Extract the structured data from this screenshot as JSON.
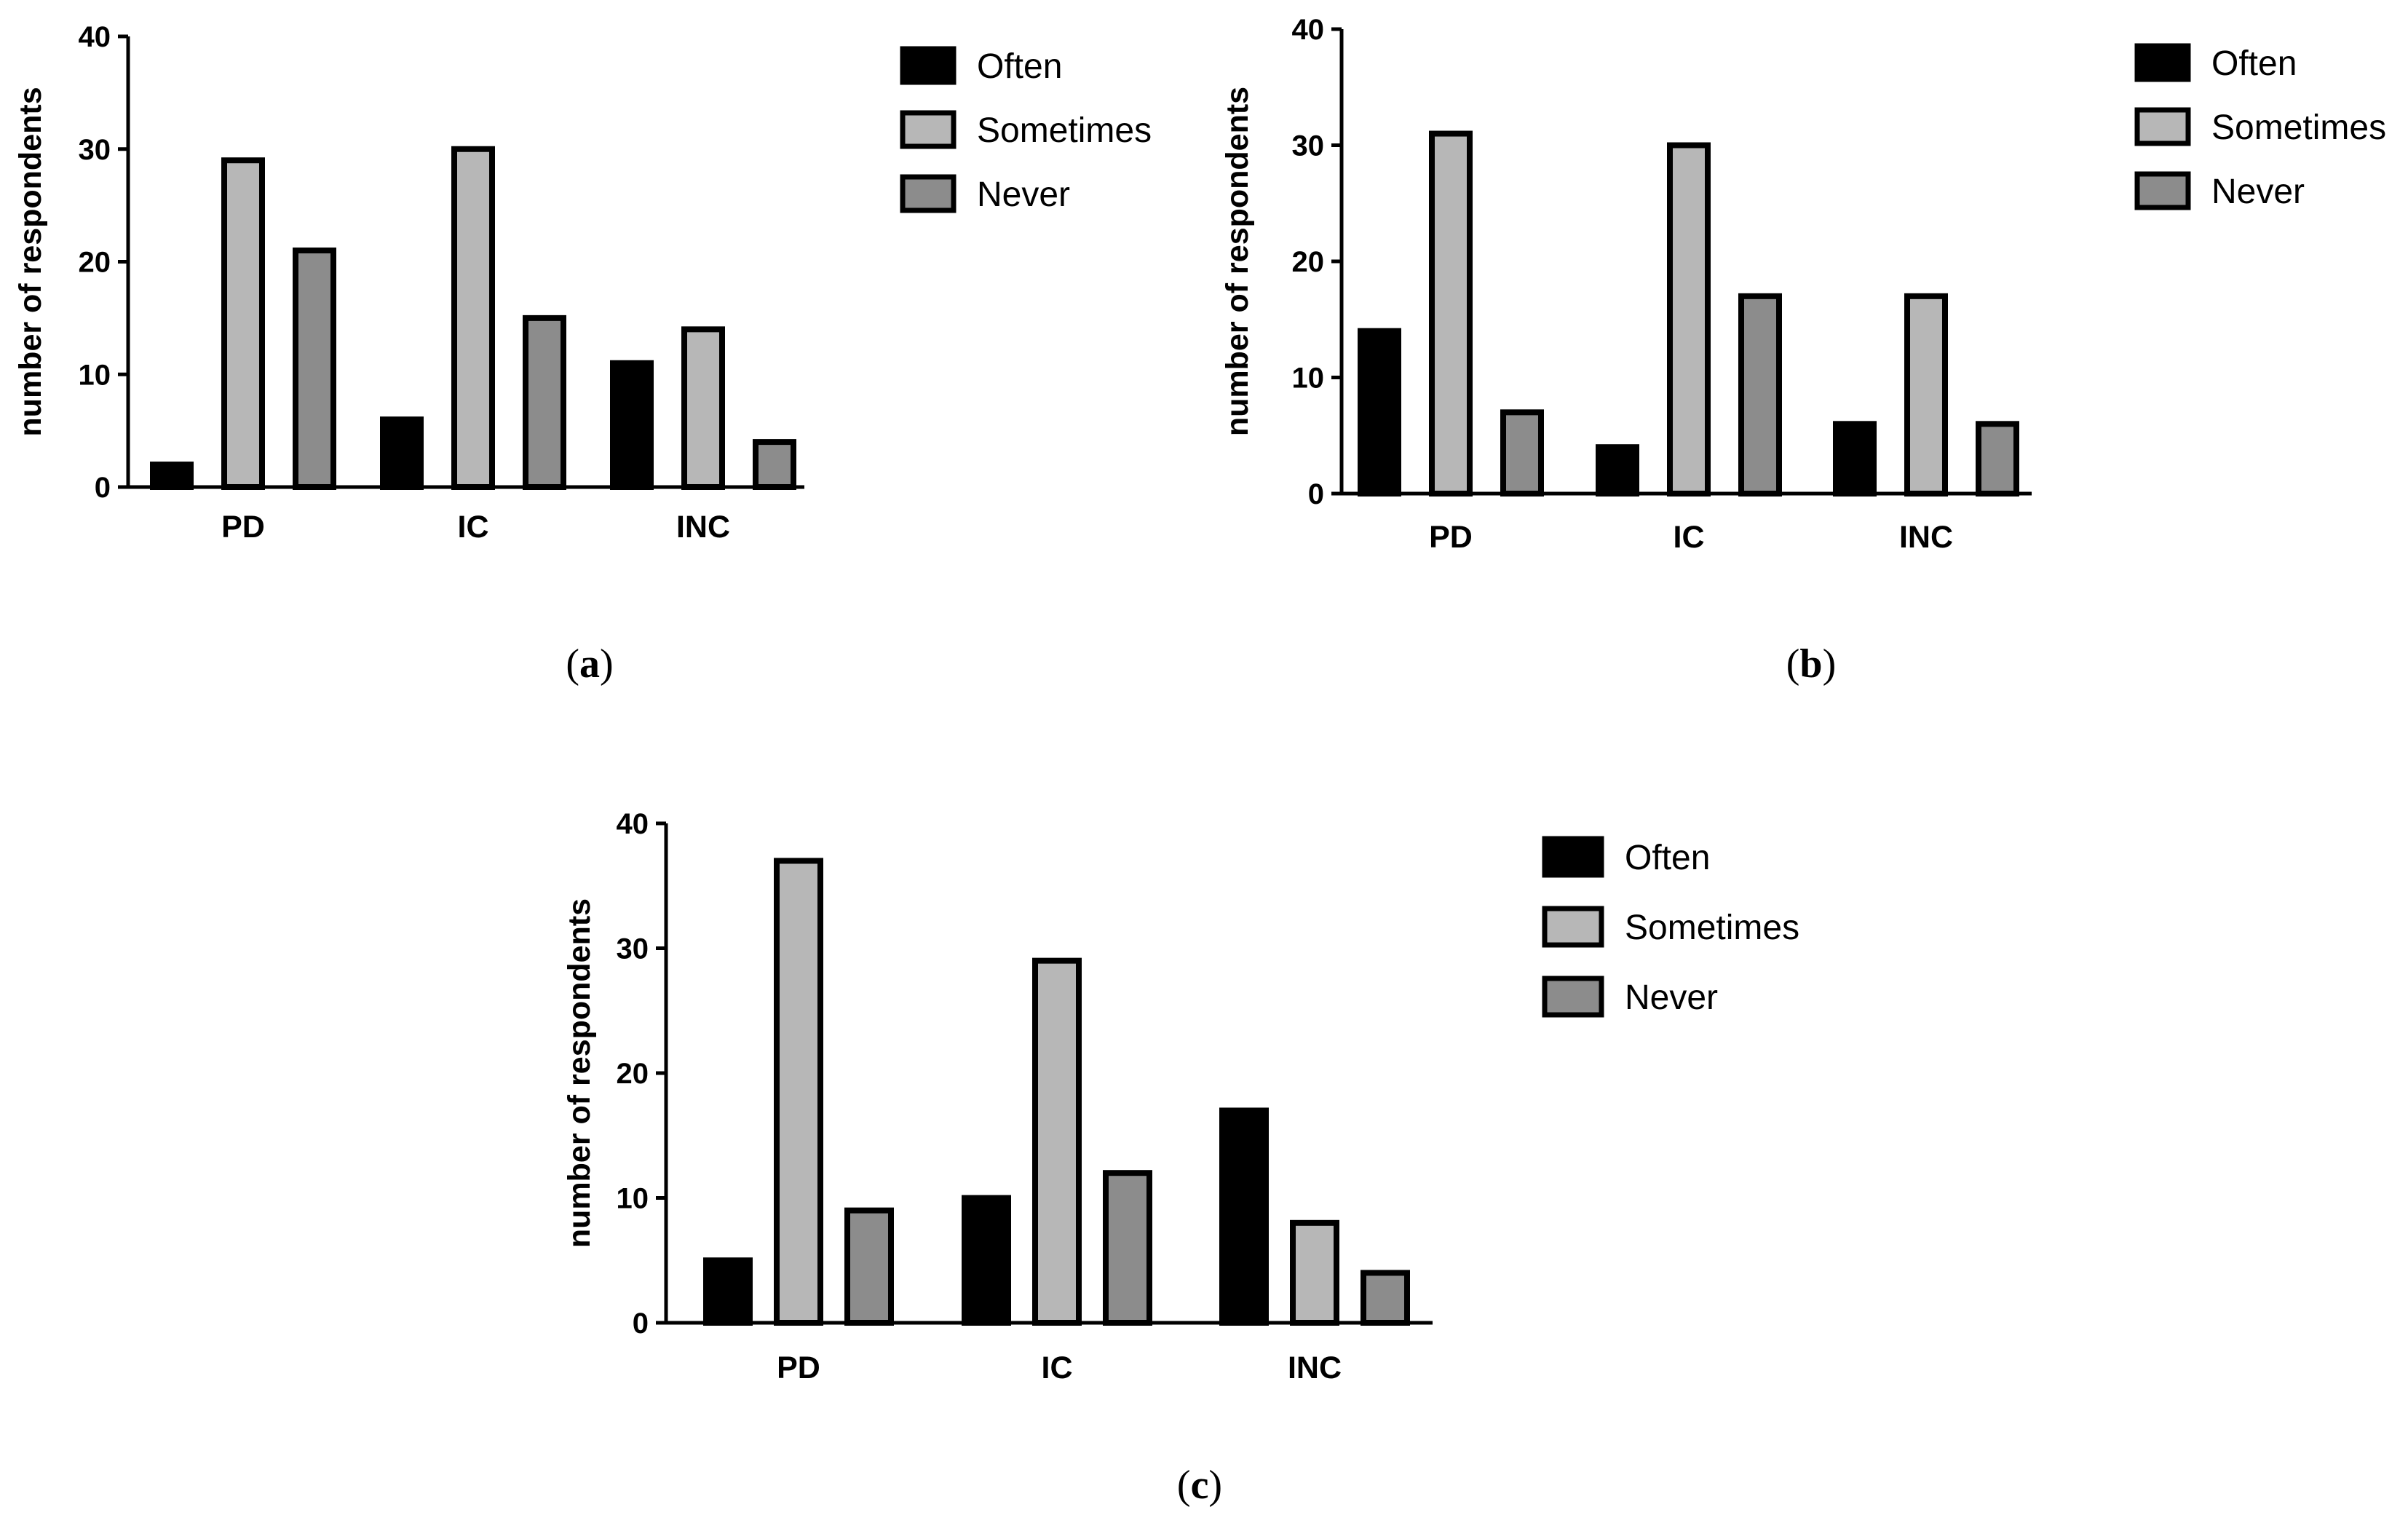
{
  "colors": {
    "Often": "#000000",
    "Sometimes": "#b7b7b7",
    "Never": "#8c8c8c",
    "axis": "#000000"
  },
  "chart_data": [
    {
      "type": "bar",
      "panel_label": "(a)",
      "ylabel": "number of respondents",
      "ylim": [
        0,
        40
      ],
      "yticks": [
        0,
        10,
        20,
        30,
        40
      ],
      "categories": [
        "PD",
        "IC",
        "INC"
      ],
      "legend_position": "top-right",
      "series": [
        {
          "name": "Often",
          "values": [
            2,
            6,
            11
          ]
        },
        {
          "name": "Sometimes",
          "values": [
            29,
            30,
            14
          ]
        },
        {
          "name": "Never",
          "values": [
            21,
            15,
            4
          ]
        }
      ]
    },
    {
      "type": "bar",
      "panel_label": "(b)",
      "ylabel": "number of respondents",
      "ylim": [
        0,
        40
      ],
      "yticks": [
        0,
        10,
        20,
        30,
        40
      ],
      "categories": [
        "PD",
        "IC",
        "INC"
      ],
      "legend_position": "top-right",
      "series": [
        {
          "name": "Often",
          "values": [
            14,
            4,
            6
          ]
        },
        {
          "name": "Sometimes",
          "values": [
            31,
            30,
            17
          ]
        },
        {
          "name": "Never",
          "values": [
            7,
            17,
            6
          ]
        }
      ]
    },
    {
      "type": "bar",
      "panel_label": "(c)",
      "ylabel": "number of respondents",
      "ylim": [
        0,
        40
      ],
      "yticks": [
        0,
        10,
        20,
        30,
        40
      ],
      "categories": [
        "PD",
        "IC",
        "INC"
      ],
      "legend_position": "top-right",
      "series": [
        {
          "name": "Often",
          "values": [
            5,
            10,
            17
          ]
        },
        {
          "name": "Sometimes",
          "values": [
            37,
            29,
            8
          ]
        },
        {
          "name": "Never",
          "values": [
            9,
            12,
            4
          ]
        }
      ]
    }
  ]
}
